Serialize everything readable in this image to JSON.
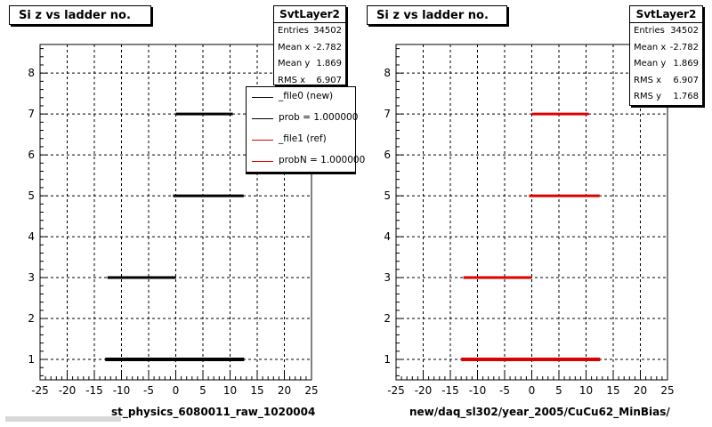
{
  "chart_data": [
    {
      "type": "scatter",
      "title": "Si z vs ladder no.",
      "xlabel": "st_physics_6080011_raw_1020004",
      "ylabel": "",
      "xlim": [
        -25,
        25
      ],
      "ylim": [
        0.5,
        8.7
      ],
      "x_ticks": [
        -25,
        -20,
        -15,
        -10,
        -5,
        0,
        5,
        10,
        15,
        20,
        25
      ],
      "y_ticks": [
        1,
        2,
        3,
        4,
        5,
        6,
        7,
        8
      ],
      "grid": true,
      "color": "#000000",
      "stats": {
        "name": "SvtLayer2",
        "rows": [
          {
            "label": "Entries",
            "value": "34502"
          },
          {
            "label": "Mean x",
            "value": "-2.782"
          },
          {
            "label": "Mean y",
            "value": "1.869"
          },
          {
            "label": "RMS x",
            "value": "6.907"
          }
        ]
      },
      "legend": {
        "placement": "top-right",
        "entries": [
          {
            "label": "_file0 (new)",
            "color": "#000000"
          },
          {
            "label": "prob = 1.000000",
            "color": "#000000"
          },
          {
            "label": "_file1 (ref)",
            "color": "#dd0000"
          },
          {
            "label": "probN = 1.000000",
            "color": "#dd0000"
          }
        ]
      },
      "segments": [
        {
          "y": 1,
          "x_start": -13,
          "x_end": 12.6
        },
        {
          "y": 3,
          "x_start": -12.6,
          "x_end": 0
        },
        {
          "y": 5,
          "x_start": -0.5,
          "x_end": 12.5
        },
        {
          "y": 7,
          "x_start": 0,
          "x_end": 10.5
        }
      ]
    },
    {
      "type": "scatter",
      "title": "Si z vs ladder no.",
      "xlabel": "new/daq_sl302/year_2005/CuCu62_MinBias/",
      "ylabel": "",
      "xlim": [
        -25,
        25
      ],
      "ylim": [
        0.5,
        8.7
      ],
      "x_ticks": [
        -25,
        -20,
        -15,
        -10,
        -5,
        0,
        5,
        10,
        15,
        20,
        25
      ],
      "y_ticks": [
        1,
        2,
        3,
        4,
        5,
        6,
        7,
        8
      ],
      "grid": true,
      "color": "#dd0000",
      "stats": {
        "name": "SvtLayer2",
        "rows": [
          {
            "label": "Entries",
            "value": "34502"
          },
          {
            "label": "Mean x",
            "value": "-2.782"
          },
          {
            "label": "Mean y",
            "value": "1.869"
          },
          {
            "label": "RMS x",
            "value": "6.907"
          },
          {
            "label": "RMS y",
            "value": "1.768"
          }
        ]
      },
      "segments": [
        {
          "y": 1,
          "x_start": -13,
          "x_end": 12.6
        },
        {
          "y": 3,
          "x_start": -12.6,
          "x_end": 0
        },
        {
          "y": 5,
          "x_start": -0.5,
          "x_end": 12.5
        },
        {
          "y": 7,
          "x_start": 0,
          "x_end": 10.5
        }
      ]
    }
  ]
}
